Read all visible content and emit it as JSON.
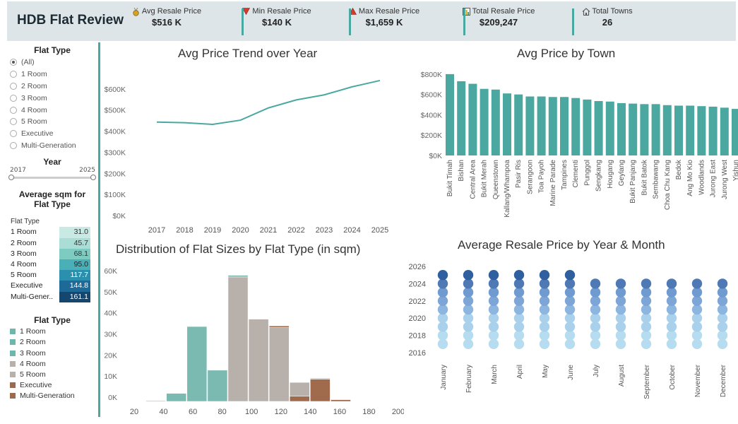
{
  "header": {
    "title": "HDB Flat Review",
    "kpis": [
      {
        "label": "Avg Resale Price",
        "value": "$516 K",
        "icon": "medal-icon",
        "color": "#d9a021"
      },
      {
        "label": "Min Resale Price",
        "value": "$140 K",
        "icon": "triangle-down-icon",
        "color": "#d93a2b"
      },
      {
        "label": "Max Resale Price",
        "value": "$1,659 K",
        "icon": "triangle-up-icon",
        "color": "#d93a2b"
      },
      {
        "label": "Total Resale Price",
        "value": "$209,247",
        "icon": "bar-chart-icon",
        "color": "#3a6fb0"
      },
      {
        "label": "Total Towns",
        "value": "26",
        "icon": "house-icon",
        "color": "#555555"
      }
    ]
  },
  "sidebar": {
    "flat_type_filter": {
      "title": "Flat Type",
      "options": [
        "(All)",
        "1 Room",
        "2 Room",
        "3 Room",
        "4 Room",
        "5 Room",
        "Executive",
        "Multi-Generation"
      ],
      "selected": "(All)"
    },
    "year_filter": {
      "title": "Year",
      "min_label": "2017",
      "max_label": "2025"
    },
    "sqm_table": {
      "title_line1": "Average sqm for",
      "title_line2": "Flat Type",
      "column_header": "Flat Type",
      "rows": [
        {
          "name": "1 Room",
          "value": "31.0",
          "bg": "#c8e9e4",
          "fg": "#333333"
        },
        {
          "name": "2 Room",
          "value": "45.7",
          "bg": "#a9ddd5",
          "fg": "#333333"
        },
        {
          "name": "3 Room",
          "value": "68.1",
          "bg": "#7ecbc2",
          "fg": "#333333"
        },
        {
          "name": "4 Room",
          "value": "95.0",
          "bg": "#4aafb6",
          "fg": "#222222"
        },
        {
          "name": "5 Room",
          "value": "117.7",
          "bg": "#2b8fae",
          "fg": "#ffffff"
        },
        {
          "name": "Executive",
          "value": "144.8",
          "bg": "#1d6a98",
          "fg": "#ffffff"
        },
        {
          "name": "Multi-Gener..",
          "value": "161.1",
          "bg": "#15466e",
          "fg": "#ffffff"
        }
      ]
    },
    "legend": {
      "title": "Flat Type",
      "items": [
        {
          "label": "1 Room",
          "color": "#6fb7ad"
        },
        {
          "label": "2 Room",
          "color": "#6fb7ad"
        },
        {
          "label": "3 Room",
          "color": "#6fb7ad"
        },
        {
          "label": "4 Room",
          "color": "#b8b0ab"
        },
        {
          "label": "5 Room",
          "color": "#b8b0ab"
        },
        {
          "label": "Executive",
          "color": "#9c6a4e"
        },
        {
          "label": "Multi-Generation",
          "color": "#9c6a4e"
        }
      ]
    }
  },
  "chart_data": [
    {
      "type": "line",
      "title": "Avg Price Trend over Year",
      "x": [
        2017,
        2018,
        2019,
        2020,
        2021,
        2022,
        2023,
        2024,
        2025
      ],
      "series": [
        {
          "values": [
            443,
            440,
            432,
            452,
            510,
            548,
            572,
            610,
            640
          ]
        }
      ],
      "yticks": [
        "$0K",
        "$100K",
        "$200K",
        "$300K",
        "$400K",
        "$500K",
        "$600K"
      ],
      "ylim": [
        0,
        680
      ],
      "color": "#4aa8a0"
    },
    {
      "type": "bar",
      "title": "Avg Price by Town",
      "categories": [
        "Bukit Timah",
        "Bishan",
        "Central Area",
        "Bukit Merah",
        "Queenstown",
        "Kallang/Whampoa",
        "Pasir Ris",
        "Serangoon",
        "Toa Payoh",
        "Marine Parade",
        "Tampines",
        "Clementi",
        "Punggol",
        "Sengkang",
        "Hougang",
        "Geylang",
        "Bukit Panjang",
        "Bukit Batok",
        "Sembawang",
        "Choa Chu Kang",
        "Bedok",
        "Ang Mo Kio",
        "Woodlands",
        "Jurong East",
        "Jurong West",
        "Yishun"
      ],
      "values": [
        800,
        730,
        705,
        655,
        648,
        610,
        600,
        580,
        580,
        575,
        575,
        565,
        550,
        535,
        530,
        515,
        510,
        505,
        505,
        495,
        490,
        490,
        485,
        480,
        470,
        458
      ],
      "yticks": [
        "$0K",
        "$200K",
        "$400K",
        "$600K",
        "$800K"
      ],
      "ylim": [
        0,
        820
      ],
      "color": "#4aa8a0"
    },
    {
      "type": "bar",
      "title": "Distribution of Flat Sizes by Flat Type (in sqm)",
      "x_ticks": [
        "20",
        "40",
        "60",
        "80",
        "100",
        "120",
        "140",
        "160",
        "180",
        "200"
      ],
      "yticks": [
        "0K",
        "10K",
        "20K",
        "30K",
        "40K",
        "50K",
        "60K"
      ],
      "ylim": [
        0,
        63
      ],
      "bins": [
        {
          "x0": 28,
          "x1": 42,
          "segments": [
            {
              "type": "1-3 Room",
              "value": 0.3
            }
          ]
        },
        {
          "x0": 42,
          "x1": 56,
          "segments": [
            {
              "type": "1-3 Room",
              "value": 3.8
            }
          ]
        },
        {
          "x0": 56,
          "x1": 70,
          "segments": [
            {
              "type": "1-3 Room",
              "value": 35.5
            }
          ]
        },
        {
          "x0": 70,
          "x1": 84,
          "segments": [
            {
              "type": "1-3 Room",
              "value": 14.8
            }
          ]
        },
        {
          "x0": 84,
          "x1": 98,
          "segments": [
            {
              "type": "4-5 Room",
              "value": 59
            },
            {
              "type": "1-3 Room",
              "value": 0.8
            }
          ]
        },
        {
          "x0": 98,
          "x1": 112,
          "segments": [
            {
              "type": "4-5 Room",
              "value": 39
            }
          ]
        },
        {
          "x0": 112,
          "x1": 126,
          "segments": [
            {
              "type": "4-5 Room",
              "value": 35
            },
            {
              "type": "Executive/Multi",
              "value": 0.8
            }
          ]
        },
        {
          "x0": 126,
          "x1": 140,
          "segments": [
            {
              "type": "Executive/Multi",
              "value": 2.5
            },
            {
              "type": "4-5 Room",
              "value": 6.5
            }
          ]
        },
        {
          "x0": 140,
          "x1": 154,
          "segments": [
            {
              "type": "Executive/Multi",
              "value": 10.5
            },
            {
              "type": "4-5 Room",
              "value": 0.5
            }
          ]
        },
        {
          "x0": 154,
          "x1": 168,
          "segments": [
            {
              "type": "Executive/Multi",
              "value": 0.8
            }
          ]
        }
      ],
      "colors": {
        "1-3 Room": "#7bbab1",
        "4-5 Room": "#b8b0ab",
        "Executive/Multi": "#a06b4d"
      }
    },
    {
      "type": "scatter",
      "title": "Average Resale Price by Year & Month",
      "months": [
        "January",
        "February",
        "March",
        "April",
        "May",
        "June",
        "July",
        "August",
        "September",
        "October",
        "November",
        "December"
      ],
      "years": [
        2017,
        2018,
        2019,
        2020,
        2021,
        2022,
        2023,
        2024,
        2025
      ],
      "yticks": [
        "2016",
        "2018",
        "2020",
        "2022",
        "2024",
        "2026"
      ],
      "ylim": [
        2016,
        2026
      ],
      "dot_colors": [
        "#b6dcf0",
        "#b6dcf0",
        "#a9d1ec",
        "#a9d1ec",
        "#8cb6e0",
        "#7da6d7",
        "#6f9bd0",
        "#4e79b4",
        "#2f5f9e"
      ],
      "months_with_2025": 6
    }
  ]
}
